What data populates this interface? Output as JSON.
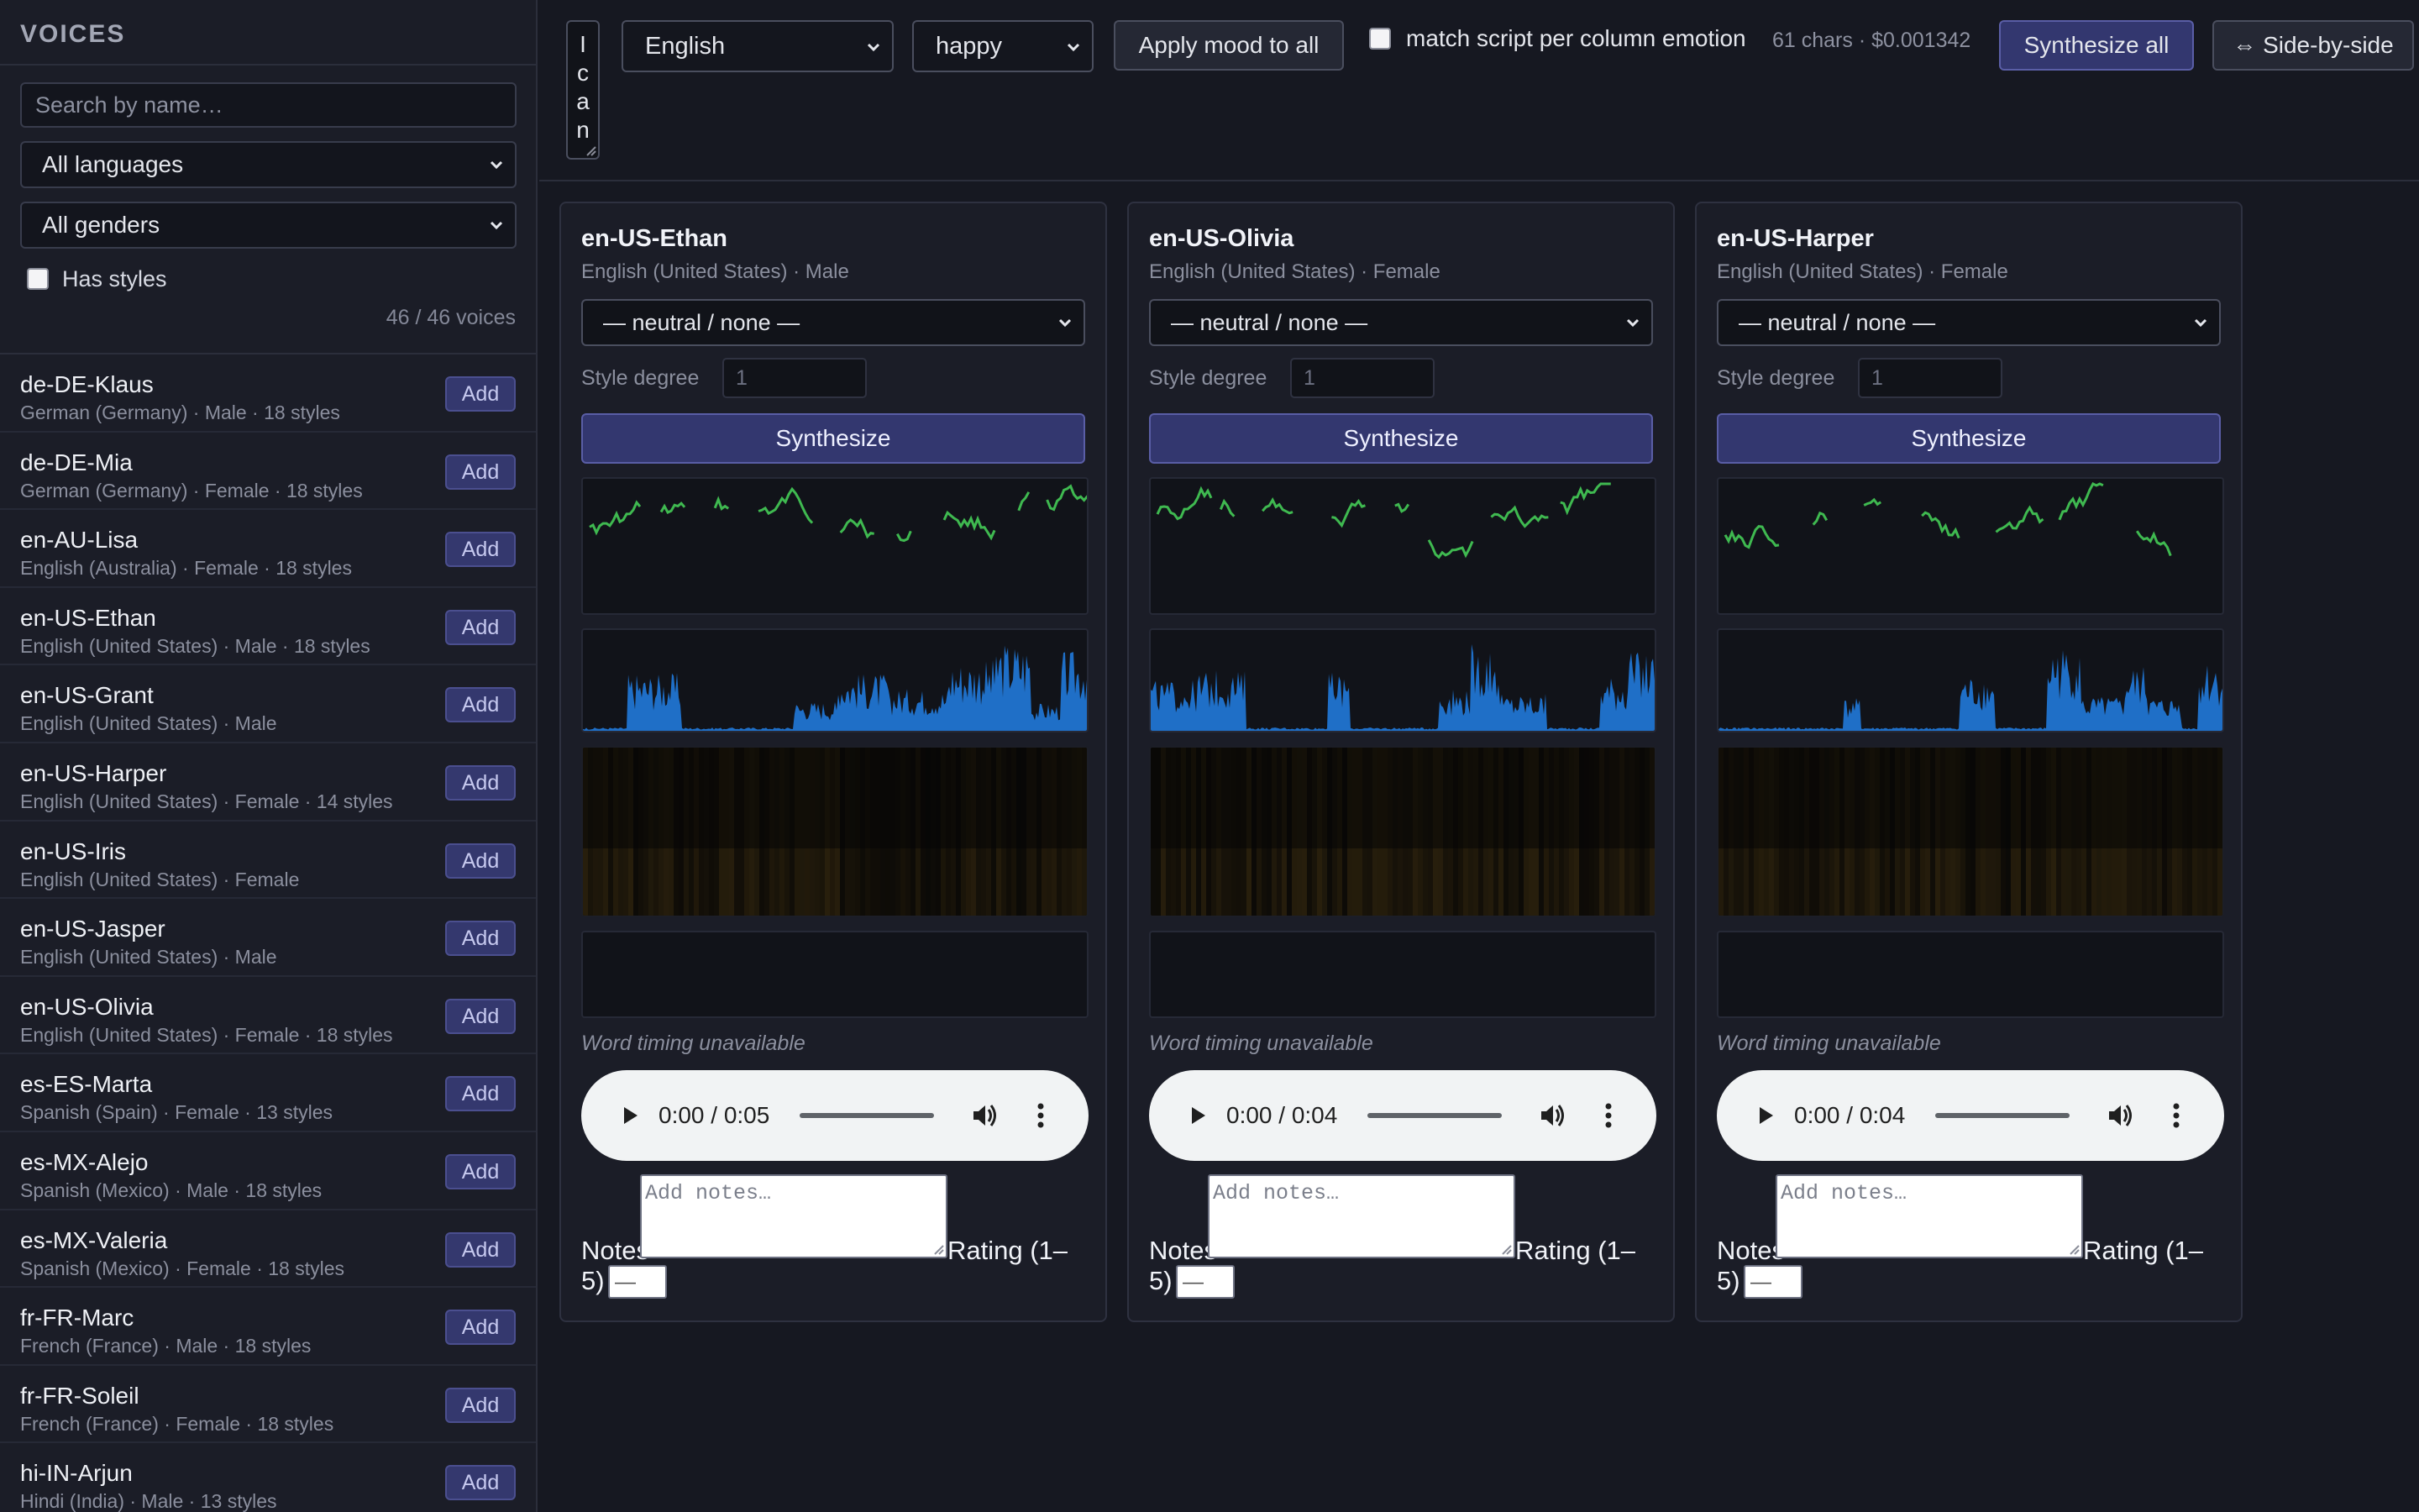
{
  "sidebar": {
    "title": "VOICES",
    "search_placeholder": "Search by name…",
    "language_filter": "All languages",
    "gender_filter": "All genders",
    "has_styles_label": "Has styles",
    "count": "46 / 46 voices",
    "add_label": "Add",
    "voices": [
      {
        "name": "de-DE-Klaus",
        "meta": "German (Germany) · Male · 18 styles"
      },
      {
        "name": "de-DE-Mia",
        "meta": "German (Germany) · Female · 18 styles"
      },
      {
        "name": "en-AU-Lisa",
        "meta": "English (Australia) · Female · 18 styles"
      },
      {
        "name": "en-US-Ethan",
        "meta": "English (United States) · Male · 18 styles"
      },
      {
        "name": "en-US-Grant",
        "meta": "English (United States) · Male"
      },
      {
        "name": "en-US-Harper",
        "meta": "English (United States) · Female · 14 styles"
      },
      {
        "name": "en-US-Iris",
        "meta": "English (United States) · Female"
      },
      {
        "name": "en-US-Jasper",
        "meta": "English (United States) · Male"
      },
      {
        "name": "en-US-Olivia",
        "meta": "English (United States) · Female · 18 styles"
      },
      {
        "name": "es-ES-Marta",
        "meta": "Spanish (Spain) · Female · 13 styles"
      },
      {
        "name": "es-MX-Alejo",
        "meta": "Spanish (Mexico) · Male · 18 styles"
      },
      {
        "name": "es-MX-Valeria",
        "meta": "Spanish (Mexico) · Female · 18 styles"
      },
      {
        "name": "fr-FR-Marc",
        "meta": "French (France) · Male · 18 styles"
      },
      {
        "name": "fr-FR-Soleil",
        "meta": "French (France) · Female · 18 styles"
      },
      {
        "name": "hi-IN-Arjun",
        "meta": "Hindi (India) · Male · 13 styles"
      }
    ]
  },
  "toolbar": {
    "script_text": [
      "I",
      "c",
      "a",
      "n"
    ],
    "language": "English",
    "mood": "happy",
    "apply_mood_label": "Apply mood to all",
    "match_script_label": "match script per column emotion",
    "cost": "61 chars · $0.001342",
    "synthesize_all_label": "Synthesize all",
    "side_by_side_label": "⇔ Side-by-side"
  },
  "column_common": {
    "style_degree_label": "Style degree",
    "synthesize_label": "Synthesize",
    "word_timing": "Word timing unavailable",
    "notes_label": "Notes",
    "notes_placeholder": "Add notes…",
    "rating_label_a": "Rating (1–",
    "rating_label_b": "5)",
    "rating_placeholder": "—"
  },
  "columns": [
    {
      "name": "en-US-Ethan",
      "meta": "English (United States) · Male",
      "style": "— neutral / none —",
      "style_degree": "1",
      "time": "0:00 / 0:05",
      "progress": 0
    },
    {
      "name": "en-US-Olivia",
      "meta": "English (United States) · Female",
      "style": "— neutral / none —",
      "style_degree": "1",
      "time": "0:00 / 0:04",
      "progress": 0
    },
    {
      "name": "en-US-Harper",
      "meta": "English (United States) · Female",
      "style": "— neutral / none —",
      "style_degree": "1",
      "time": "0:00 / 0:04",
      "progress": 0
    }
  ],
  "colors": {
    "accent": "#33376f",
    "pitch": "#3fb950",
    "waveform": "#1f6fc7",
    "spectrogram": "#3a2c10"
  }
}
